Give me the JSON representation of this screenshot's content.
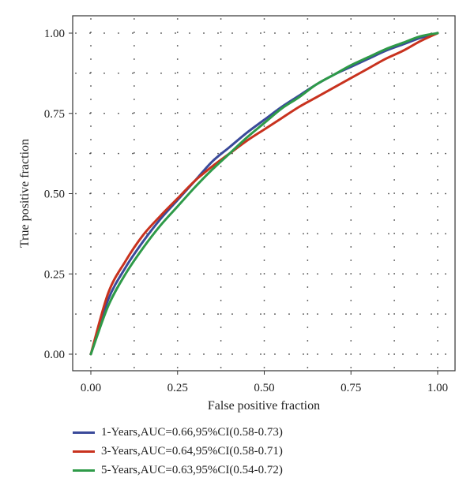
{
  "chart_data": {
    "type": "line",
    "xlabel": "False positive fraction",
    "ylabel": "True positive fraction",
    "xlim": [
      0,
      1
    ],
    "ylim": [
      0,
      1
    ],
    "xticks": [
      "0.00",
      "0.25",
      "0.50",
      "0.75",
      "1.00"
    ],
    "yticks": [
      "0.00",
      "0.25",
      "0.50",
      "0.75",
      "1.00"
    ],
    "grid": "dotted",
    "legend_position": "bottom-left",
    "series": [
      {
        "name": "1-Years,AUC=0.66,95%CI(0.58-0.73)",
        "color": "#3a4a9a",
        "x": [
          0,
          0.05,
          0.1,
          0.15,
          0.2,
          0.25,
          0.3,
          0.35,
          0.4,
          0.45,
          0.5,
          0.55,
          0.6,
          0.65,
          0.7,
          0.75,
          0.8,
          0.85,
          0.9,
          0.95,
          1.0
        ],
        "y": [
          0,
          0.17,
          0.27,
          0.35,
          0.42,
          0.48,
          0.54,
          0.6,
          0.645,
          0.69,
          0.73,
          0.77,
          0.805,
          0.84,
          0.87,
          0.895,
          0.92,
          0.945,
          0.965,
          0.985,
          1.0
        ]
      },
      {
        "name": "3-Years,AUC=0.64,95%CI(0.58-0.71)",
        "color": "#c8321e",
        "x": [
          0,
          0.05,
          0.1,
          0.15,
          0.2,
          0.25,
          0.3,
          0.35,
          0.4,
          0.45,
          0.5,
          0.55,
          0.6,
          0.65,
          0.7,
          0.75,
          0.8,
          0.85,
          0.9,
          0.95,
          1.0
        ],
        "y": [
          0,
          0.19,
          0.29,
          0.37,
          0.43,
          0.485,
          0.54,
          0.585,
          0.625,
          0.665,
          0.7,
          0.735,
          0.77,
          0.8,
          0.83,
          0.86,
          0.89,
          0.92,
          0.945,
          0.975,
          1.0
        ]
      },
      {
        "name": "5-Years,AUC=0.63,95%CI(0.54-0.72)",
        "color": "#2e9a48",
        "x": [
          0,
          0.05,
          0.1,
          0.15,
          0.2,
          0.25,
          0.3,
          0.35,
          0.4,
          0.45,
          0.5,
          0.55,
          0.6,
          0.65,
          0.7,
          0.75,
          0.8,
          0.85,
          0.9,
          0.95,
          1.0
        ],
        "y": [
          0,
          0.15,
          0.25,
          0.33,
          0.4,
          0.46,
          0.52,
          0.575,
          0.625,
          0.675,
          0.72,
          0.765,
          0.8,
          0.84,
          0.87,
          0.9,
          0.925,
          0.95,
          0.97,
          0.99,
          1.0
        ]
      }
    ]
  }
}
